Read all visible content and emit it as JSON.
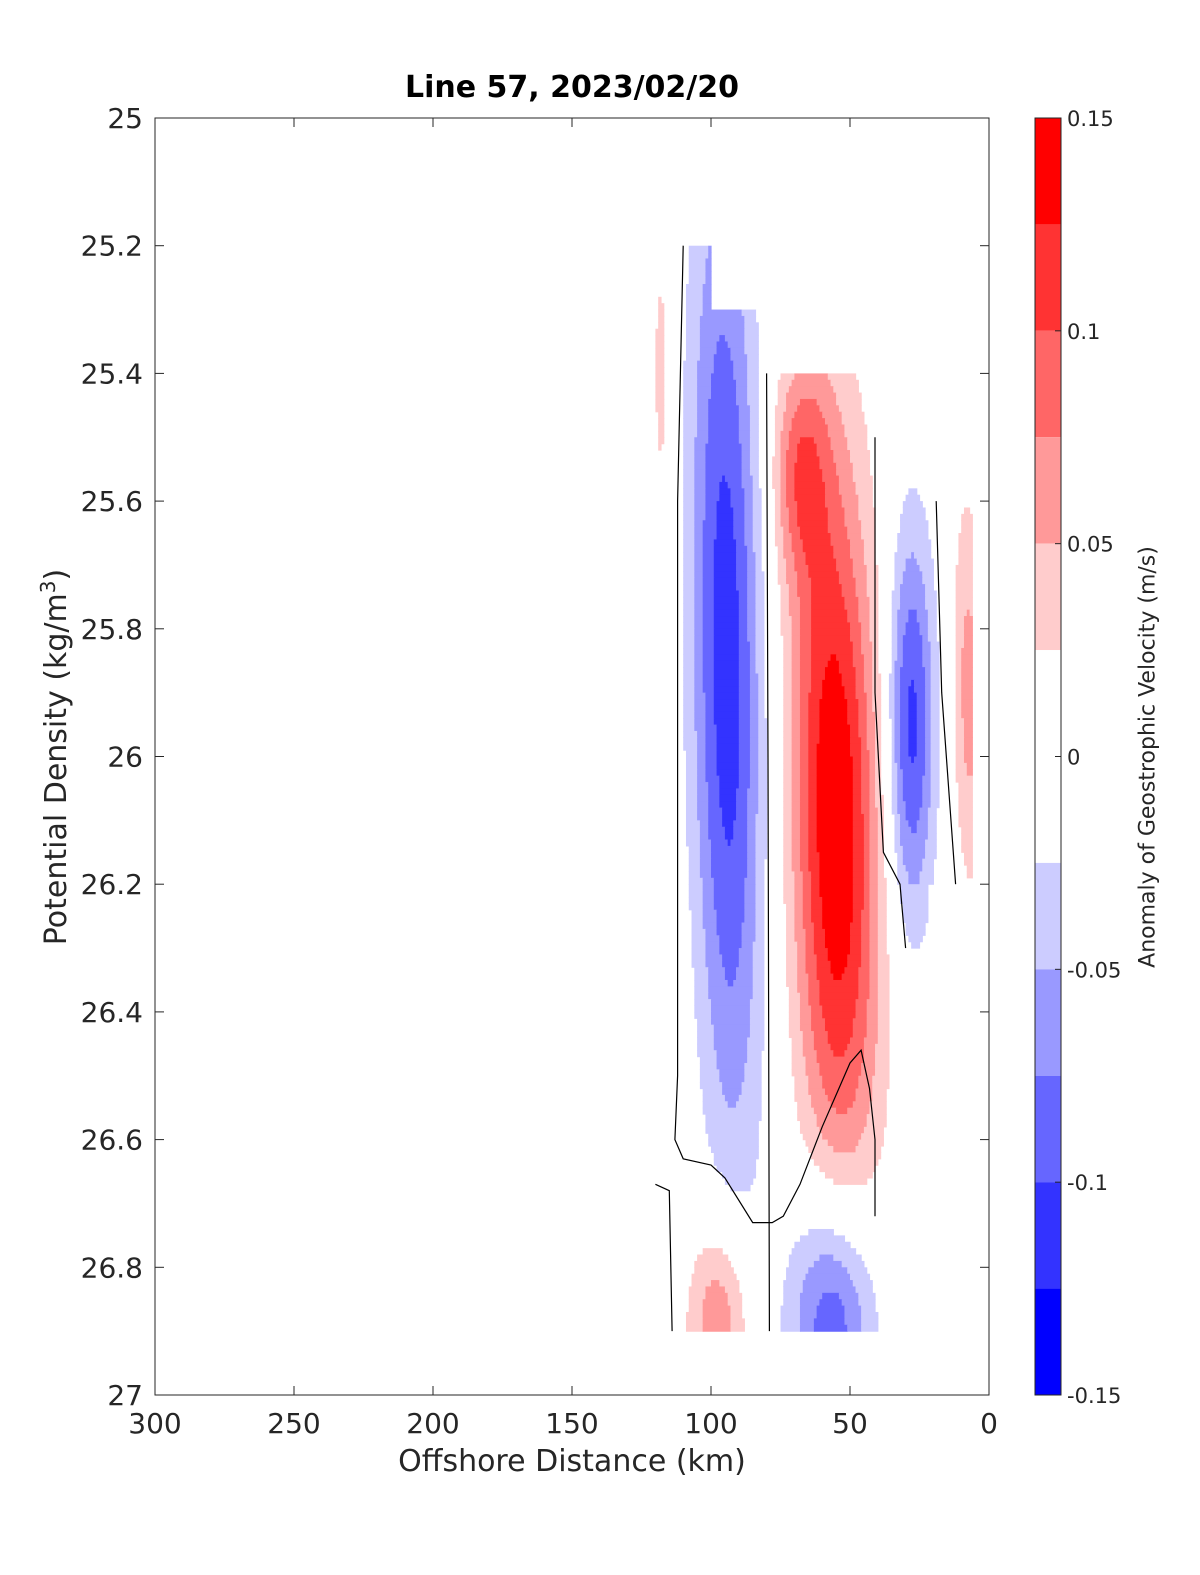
{
  "chart_data": {
    "type": "contour",
    "title": "Line 57, 2023/02/20",
    "xlabel": "Offshore Distance (km)",
    "ylabel": "Potential Density (kg/m",
    "ylabel_sup": "3",
    "ylabel_end": ")",
    "xlim": [
      300,
      0
    ],
    "ylim": [
      27,
      25
    ],
    "x_reversed": true,
    "y_reversed": true,
    "xticks": [
      300,
      250,
      200,
      150,
      100,
      50,
      0
    ],
    "xtick_labels": [
      "300",
      "250",
      "200",
      "150",
      "100",
      "50",
      "0"
    ],
    "yticks": [
      25,
      25.2,
      25.4,
      25.6,
      25.8,
      26,
      26.2,
      26.4,
      26.6,
      26.8,
      27
    ],
    "ytick_labels": [
      "25",
      "25.2",
      "25.4",
      "25.6",
      "25.8",
      "26",
      "26.2",
      "26.4",
      "26.6",
      "26.8",
      "27"
    ],
    "grid": false,
    "colorbar": {
      "label": "Anomaly of Geostrophic Velocity (m/s)",
      "limits": [
        -0.15,
        0.15
      ],
      "ticks": [
        -0.15,
        -0.1,
        -0.05,
        0,
        0.05,
        0.1,
        0.15
      ],
      "tick_labels": [
        "-0.15",
        "-0.1",
        "-0.05",
        "0",
        "0.05",
        "0.1",
        "0.15"
      ],
      "levels": [
        {
          "from": 0.125,
          "to": 0.15,
          "color": "#ff0000"
        },
        {
          "from": 0.1,
          "to": 0.125,
          "color": "#ff3333"
        },
        {
          "from": 0.075,
          "to": 0.1,
          "color": "#ff6666"
        },
        {
          "from": 0.05,
          "to": 0.075,
          "color": "#ff9999"
        },
        {
          "from": 0.025,
          "to": 0.05,
          "color": "#ffcccc"
        },
        {
          "from": -0.025,
          "to": 0.025,
          "color": "#ffffff"
        },
        {
          "from": -0.05,
          "to": -0.025,
          "color": "#ccccff"
        },
        {
          "from": -0.075,
          "to": -0.05,
          "color": "#9999ff"
        },
        {
          "from": -0.1,
          "to": -0.075,
          "color": "#6666ff"
        },
        {
          "from": -0.125,
          "to": -0.1,
          "color": "#3333ff"
        },
        {
          "from": -0.15,
          "to": -0.125,
          "color": "#0000ff"
        }
      ]
    },
    "features": [
      {
        "sign": "negative",
        "peak": -0.11,
        "x_range": [
          112,
          80
        ],
        "sigma_range": [
          25.25,
          26.6
        ],
        "desc": "offshore blue band"
      },
      {
        "sign": "positive",
        "peak": 0.14,
        "x_range": [
          80,
          42
        ],
        "sigma_range": [
          25.4,
          26.7
        ],
        "desc": "central red core"
      },
      {
        "sign": "negative",
        "peak": -0.11,
        "x_range": [
          40,
          20
        ],
        "sigma_range": [
          25.5,
          26.3
        ],
        "desc": "nearshore blue band"
      },
      {
        "sign": "positive",
        "peak": 0.06,
        "x_range": [
          16,
          5
        ],
        "sigma_range": [
          25.6,
          26.15
        ],
        "desc": "coastal red strip"
      },
      {
        "sign": "positive",
        "peak": 0.08,
        "x_range": [
          110,
          83
        ],
        "sigma_range": [
          26.7,
          26.9
        ],
        "desc": "deep red lobe"
      },
      {
        "sign": "negative",
        "peak": -0.1,
        "x_range": [
          75,
          35
        ],
        "sigma_range": [
          26.6,
          26.9
        ],
        "desc": "deep blue lobe"
      }
    ]
  }
}
